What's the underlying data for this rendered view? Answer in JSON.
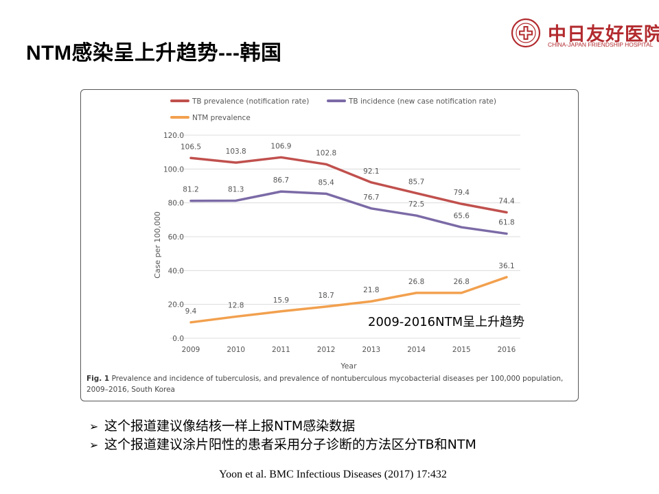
{
  "slide": {
    "title": "NTM感染呈上升趋势---韩国",
    "annotation": "2009-2016NTM呈上升趋势",
    "bullets": [
      "这个报道建议像结核一样上报NTM感染数据",
      "这个报道建议涂片阳性的患者采用分子诊断的方法区分TB和NTM"
    ],
    "citation": "Yoon et al. BMC Infectious Diseases (2017) 17:432"
  },
  "logo": {
    "name_cn": "中日友好医院",
    "name_en": "CHINA-JAPAN FRIENDSHIP HOSPITAL",
    "color": "#b22a2e"
  },
  "figure": {
    "caption_label": "Fig. 1",
    "caption_text": "Prevalence and incidence of tuberculosis, and prevalence of nontuberculous mycobacterial diseases per 100,000 population, 2009–2016, South Korea"
  },
  "chart_data": {
    "type": "line",
    "x": [
      "2009",
      "2010",
      "2011",
      "2012",
      "2013",
      "2014",
      "2015",
      "2016"
    ],
    "xlabel": "Year",
    "ylabel": "Case per 100,000",
    "ylim": [
      0,
      120
    ],
    "yticks": [
      "0.0",
      "20.0",
      "40.0",
      "60.0",
      "80.0",
      "100.0",
      "120.0"
    ],
    "grid": true,
    "legend_position": "top",
    "series": [
      {
        "name": "TB prevalence (notification rate)",
        "color": "#c0504d",
        "values": [
          106.5,
          103.8,
          106.9,
          102.8,
          92.1,
          85.7,
          79.4,
          74.4
        ],
        "labels": [
          "106.5",
          "103.8",
          "106.9",
          "102.8",
          "92.1",
          "85.7",
          "79.4",
          "74.4"
        ]
      },
      {
        "name": "TB incidence (new case notification rate)",
        "color": "#7b6aa6",
        "values": [
          81.2,
          81.3,
          86.7,
          85.4,
          76.7,
          72.5,
          65.6,
          61.8
        ],
        "labels": [
          "81.2",
          "81.3",
          "86.7",
          "85.4",
          "76.7",
          "72.5",
          "65.6",
          "61.8"
        ]
      },
      {
        "name": "NTM prevalence",
        "color": "#f2a04e",
        "values": [
          9.4,
          12.8,
          15.9,
          18.7,
          21.8,
          26.8,
          26.8,
          36.1
        ],
        "labels": [
          "9.4",
          "12.8",
          "15.9",
          "18.7",
          "21.8",
          "26.8",
          "26.8",
          "36.1"
        ]
      }
    ]
  }
}
